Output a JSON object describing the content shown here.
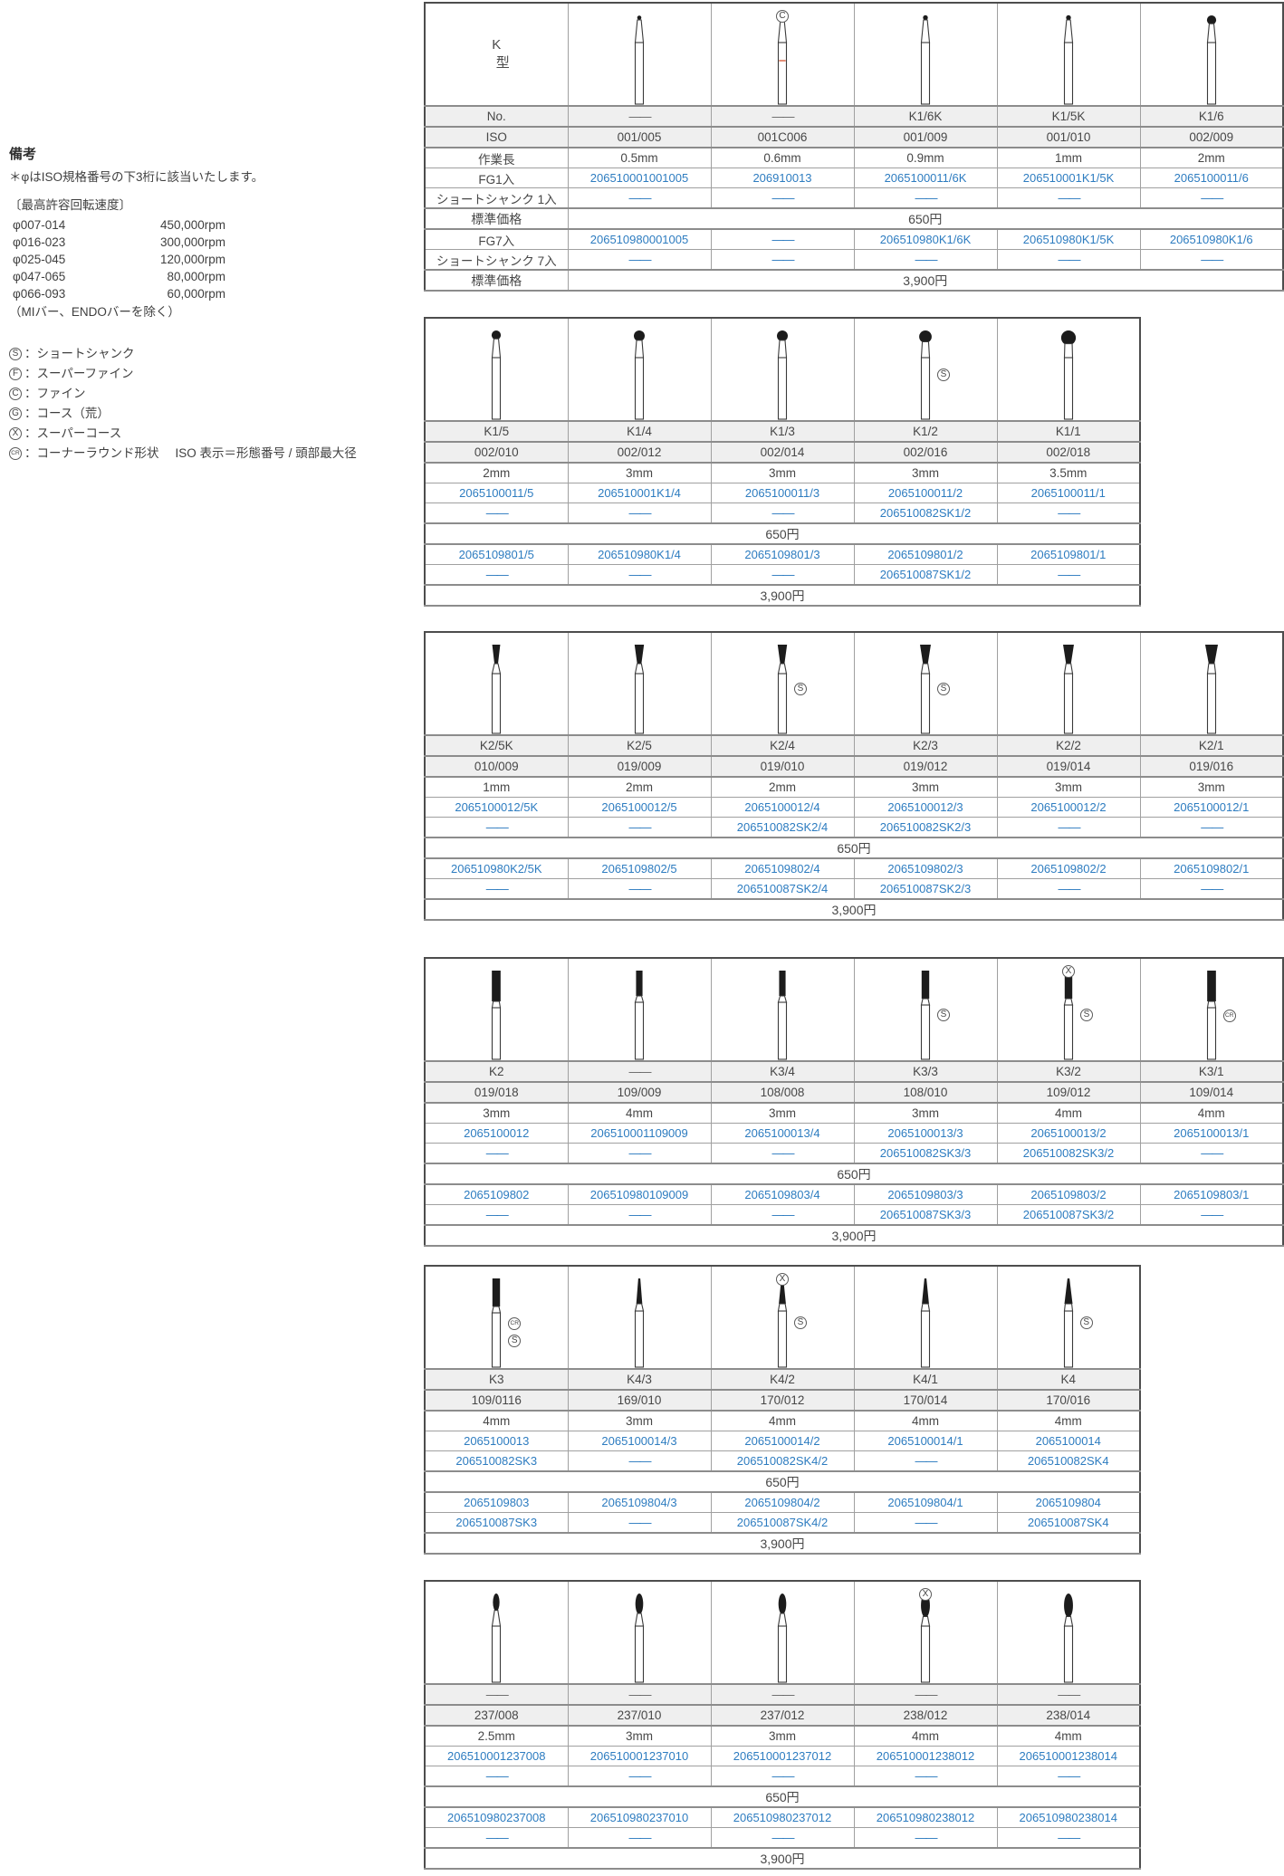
{
  "notes": {
    "title": "備考",
    "iso_note": "＊φはISO規格番号の下3桁に該当いたします。",
    "speed_title": "〔最高許容回転速度〕",
    "speeds": [
      {
        "range": "φ007-014",
        "rpm": "450,000rpm"
      },
      {
        "range": "φ016-023",
        "rpm": "300,000rpm"
      },
      {
        "range": "φ025-045",
        "rpm": "120,000rpm"
      },
      {
        "range": "φ047-065",
        "rpm": "80,000rpm"
      },
      {
        "range": "φ066-093",
        "rpm": "60,000rpm"
      }
    ],
    "speed_exception": "（MIバー、ENDOバーを除く）",
    "legend": [
      {
        "mark": "S",
        "label": "：ショートシャンク"
      },
      {
        "mark": "F",
        "label": "：スーパーファイン"
      },
      {
        "mark": "C",
        "label": "：ファイン"
      },
      {
        "mark": "G",
        "label": "：コース（荒）"
      },
      {
        "mark": "X",
        "label": "：スーパーコース"
      },
      {
        "mark": "CR",
        "label": "：コーナーラウンド形状",
        "extra": "ISO 表示＝形態番号 / 頭部最大径"
      }
    ]
  },
  "header": {
    "k1": "K",
    "k2": "型"
  },
  "row_labels": {
    "no": "No.",
    "iso": "ISO",
    "len": "作業長",
    "fg1": "FG1入",
    "ss1": "ショートシャンク 1入",
    "price": "標準価格",
    "fg7": "FG7入",
    "ss7": "ショートシャンク 7入"
  },
  "colors": {
    "link_blue": "#2d7cc0",
    "red_band": "#e2836a"
  },
  "tables": [
    {
      "label_col": true,
      "price1": "650円",
      "price7": "3,900円",
      "columns": [
        {
          "bur": "point",
          "size": "s",
          "no": "——",
          "iso": "001/005",
          "len": "0.5mm",
          "fg1": "206510001001005",
          "ss1": "——",
          "fg7": "206510980001005",
          "ss7": "——"
        },
        {
          "bur": "point",
          "size": "s",
          "red_band": true,
          "above": [
            "C"
          ],
          "no": "——",
          "iso": "001C006",
          "len": "0.6mm",
          "fg1": "206910013",
          "ss1": "——",
          "fg7": "——",
          "ss7": "——"
        },
        {
          "bur": "point",
          "size": "m",
          "no": "K1/6K",
          "iso": "001/009",
          "len": "0.9mm",
          "fg1": "2065100011/6K",
          "ss1": "——",
          "fg7": "206510980K1/6K",
          "ss7": "——"
        },
        {
          "bur": "point",
          "size": "m",
          "no": "K1/5K",
          "iso": "001/010",
          "len": "1mm",
          "fg1": "206510001K1/5K",
          "ss1": "——",
          "fg7": "206510980K1/5K",
          "ss7": "——"
        },
        {
          "bur": "ball",
          "size": "s",
          "no": "K1/6",
          "iso": "002/009",
          "len": "2mm",
          "fg1": "2065100011/6",
          "ss1": "——",
          "fg7": "206510980K1/6",
          "ss7": "——"
        }
      ]
    },
    {
      "label_col": false,
      "price1": "650円",
      "price7": "3,900円",
      "columns": [
        {
          "bur": "ball",
          "size": "s",
          "no": "K1/5",
          "iso": "002/010",
          "len": "2mm",
          "fg1": "2065100011/5",
          "ss1": "——",
          "fg7": "2065109801/5",
          "ss7": "——"
        },
        {
          "bur": "ball",
          "size": "m",
          "no": "K1/4",
          "iso": "002/012",
          "len": "3mm",
          "fg1": "206510001K1/4",
          "ss1": "——",
          "fg7": "206510980K1/4",
          "ss7": "——"
        },
        {
          "bur": "ball",
          "size": "m",
          "no": "K1/3",
          "iso": "002/014",
          "len": "3mm",
          "fg1": "2065100011/3",
          "ss1": "——",
          "fg7": "2065109801/3",
          "ss7": "——"
        },
        {
          "bur": "ball",
          "size": "l",
          "side": [
            "S"
          ],
          "no": "K1/2",
          "iso": "002/016",
          "len": "3mm",
          "fg1": "2065100011/2",
          "ss1": "206510082SK1/2",
          "fg7": "2065109801/2",
          "ss7": "206510087SK1/2"
        },
        {
          "bur": "ball",
          "size": "xl",
          "no": "K1/1",
          "iso": "002/018",
          "len": "3.5mm",
          "fg1": "2065100011/1",
          "ss1": "——",
          "fg7": "2065109801/1",
          "ss7": "——"
        }
      ]
    },
    {
      "label_col": false,
      "price1": "650円",
      "price7": "3,900円",
      "columns": [
        {
          "bur": "invcone",
          "size": "s",
          "no": "K2/5K",
          "iso": "010/009",
          "len": "1mm",
          "fg1": "2065100012/5K",
          "ss1": "——",
          "fg7": "206510980K2/5K",
          "ss7": "——"
        },
        {
          "bur": "invcone",
          "size": "m",
          "no": "K2/5",
          "iso": "019/009",
          "len": "2mm",
          "fg1": "2065100012/5",
          "ss1": "——",
          "fg7": "2065109802/5",
          "ss7": "——"
        },
        {
          "bur": "invcone",
          "size": "m",
          "side": [
            "S"
          ],
          "no": "K2/4",
          "iso": "019/010",
          "len": "2mm",
          "fg1": "2065100012/4",
          "ss1": "206510082SK2/4",
          "fg7": "2065109802/4",
          "ss7": "206510087SK2/4"
        },
        {
          "bur": "invcone",
          "size": "l",
          "side": [
            "S"
          ],
          "no": "K2/3",
          "iso": "019/012",
          "len": "3mm",
          "fg1": "2065100012/3",
          "ss1": "206510082SK2/3",
          "fg7": "2065109802/3",
          "ss7": "206510087SK2/3"
        },
        {
          "bur": "invcone",
          "size": "l",
          "no": "K2/2",
          "iso": "019/014",
          "len": "3mm",
          "fg1": "2065100012/2",
          "ss1": "——",
          "fg7": "2065109802/2",
          "ss7": "——"
        },
        {
          "bur": "invcone",
          "size": "xl",
          "no": "K2/1",
          "iso": "019/016",
          "len": "3mm",
          "fg1": "2065100012/1",
          "ss1": "——",
          "fg7": "2065109802/1",
          "ss7": "——"
        }
      ]
    },
    {
      "label_col": false,
      "price1": "650円",
      "price7": "3,900円",
      "columns": [
        {
          "bur": "cyl",
          "size": "l",
          "no": "K2",
          "iso": "019/018",
          "len": "3mm",
          "fg1": "2065100012",
          "ss1": "——",
          "fg7": "2065109802",
          "ss7": "——"
        },
        {
          "bur": "cyl",
          "size": "s",
          "no": "——",
          "iso": "109/009",
          "len": "4mm",
          "fg1": "206510001109009",
          "ss1": "——",
          "fg7": "206510980109009",
          "ss7": "——"
        },
        {
          "bur": "cyl",
          "size": "s",
          "no": "K3/4",
          "iso": "108/008",
          "len": "3mm",
          "fg1": "2065100013/4",
          "ss1": "——",
          "fg7": "2065109803/4",
          "ss7": "——"
        },
        {
          "bur": "cyl",
          "size": "m",
          "side": [
            "S"
          ],
          "no": "K3/3",
          "iso": "108/010",
          "len": "3mm",
          "fg1": "2065100013/3",
          "ss1": "206510082SK3/3",
          "fg7": "2065109803/3",
          "ss7": "206510087SK3/3"
        },
        {
          "bur": "cyl",
          "size": "m",
          "above": [
            "X"
          ],
          "side": [
            "S"
          ],
          "no": "K3/2",
          "iso": "109/012",
          "len": "4mm",
          "fg1": "2065100013/2",
          "ss1": "206510082SK3/2",
          "fg7": "2065109803/2",
          "ss7": "206510087SK3/2"
        },
        {
          "bur": "cyl",
          "size": "l",
          "side": [
            "CR"
          ],
          "no": "K3/1",
          "iso": "109/014",
          "len": "4mm",
          "fg1": "2065100013/1",
          "ss1": "——",
          "fg7": "2065109803/1",
          "ss7": "——"
        }
      ]
    },
    {
      "label_col": false,
      "price1": "650円",
      "price7": "3,900円",
      "columns": [
        {
          "bur": "cyl",
          "size": "m",
          "side": [
            "CR",
            "S"
          ],
          "no": "K3",
          "iso": "109/0116",
          "len": "4mm",
          "fg1": "2065100013",
          "ss1": "206510082SK3",
          "fg7": "2065109803",
          "ss7": "206510087SK3"
        },
        {
          "bur": "taper",
          "size": "s",
          "no": "K4/3",
          "iso": "169/010",
          "len": "3mm",
          "fg1": "2065100014/3",
          "ss1": "——",
          "fg7": "2065109804/3",
          "ss7": "——"
        },
        {
          "bur": "taper",
          "size": "m",
          "above": [
            "X"
          ],
          "side": [
            "S"
          ],
          "no": "K4/2",
          "iso": "170/012",
          "len": "4mm",
          "fg1": "2065100014/2",
          "ss1": "206510082SK4/2",
          "fg7": "2065109804/2",
          "ss7": "206510087SK4/2"
        },
        {
          "bur": "taper",
          "size": "m",
          "no": "K4/1",
          "iso": "170/014",
          "len": "4mm",
          "fg1": "2065100014/1",
          "ss1": "——",
          "fg7": "2065109804/1",
          "ss7": "——"
        },
        {
          "bur": "taper",
          "size": "l",
          "side": [
            "S"
          ],
          "no": "K4",
          "iso": "170/016",
          "len": "4mm",
          "fg1": "2065100014",
          "ss1": "206510082SK4",
          "fg7": "2065109804",
          "ss7": "206510087SK4"
        }
      ]
    },
    {
      "label_col": false,
      "price1": "650円",
      "price7": "3,900円",
      "columns": [
        {
          "bur": "pear",
          "size": "s",
          "no": "——",
          "iso": "237/008",
          "len": "2.5mm",
          "fg1": "206510001237008",
          "ss1": "——",
          "fg7": "206510980237008",
          "ss7": "——"
        },
        {
          "bur": "pear",
          "size": "m",
          "no": "——",
          "iso": "237/010",
          "len": "3mm",
          "fg1": "206510001237010",
          "ss1": "——",
          "fg7": "206510980237010",
          "ss7": "——"
        },
        {
          "bur": "pear",
          "size": "m",
          "no": "——",
          "iso": "237/012",
          "len": "3mm",
          "fg1": "206510001237012",
          "ss1": "——",
          "fg7": "206510980237012",
          "ss7": "——"
        },
        {
          "bur": "pear",
          "size": "l",
          "above": [
            "X"
          ],
          "no": "——",
          "iso": "238/012",
          "len": "4mm",
          "fg1": "206510001238012",
          "ss1": "——",
          "fg7": "206510980238012",
          "ss7": "——"
        },
        {
          "bur": "pear",
          "size": "l",
          "no": "——",
          "iso": "238/014",
          "len": "4mm",
          "fg1": "206510001238014",
          "ss1": "——",
          "fg7": "206510980238014",
          "ss7": "——"
        }
      ]
    }
  ]
}
